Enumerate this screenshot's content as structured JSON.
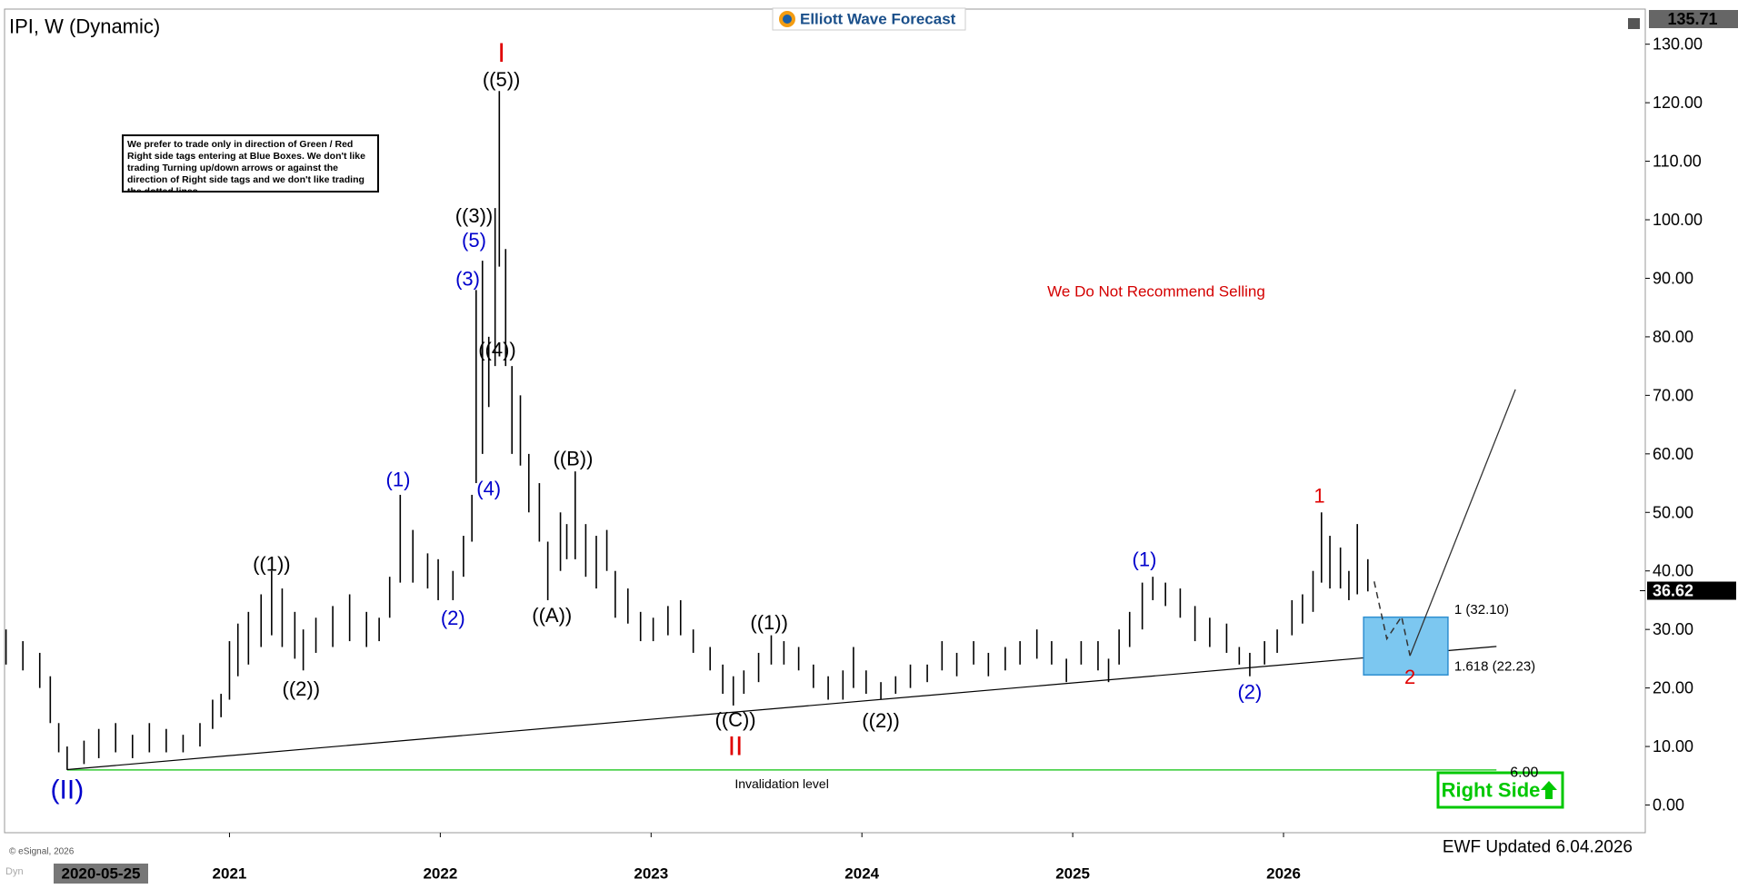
{
  "chart_data": {
    "type": "ohlc",
    "title": "IPI, W (Dynamic)",
    "logo": "Elliott Wave Forecast",
    "note": "We prefer to trade only in direction of Green / Red Right side tags entering at Blue Boxes. We don't like trading Turning up/down arrows or against the direction of Right side tags and we don't like trading the dotted lines.",
    "warning": "We Do Not Recommend Selling",
    "right_side": "Right Side",
    "updated": "EWF Updated 6.04.2026",
    "source": "© eSignal, 2026",
    "mode": "Dyn",
    "x_start_label": "2020-05-25",
    "axis_top_label": 135.71,
    "last_price": 36.62,
    "xlim": [
      2019.933,
      2027.716
    ],
    "ylim": [
      -4.73,
      136.0
    ],
    "xticks": [
      2021,
      2022,
      2023,
      2024,
      2025,
      2026
    ],
    "yticks": [
      {
        "value": 0,
        "label": "0.00"
      },
      {
        "value": 10,
        "label": "10.00"
      },
      {
        "value": 20,
        "label": "20.00"
      },
      {
        "value": 30,
        "label": "30.00"
      },
      {
        "value": 40,
        "label": "40.00"
      },
      {
        "value": 50,
        "label": "50.00"
      },
      {
        "value": 60,
        "label": "60.00"
      },
      {
        "value": 70,
        "label": "70.00"
      },
      {
        "value": 80,
        "label": "80.00"
      },
      {
        "value": 90,
        "label": "90.00"
      },
      {
        "value": 100,
        "label": "100.00"
      },
      {
        "value": 110,
        "label": "110.00"
      },
      {
        "value": 120,
        "label": "120.00"
      },
      {
        "value": 130,
        "label": "130.00"
      }
    ],
    "series": [
      {
        "color": "#000000",
        "x": [
          2019.94,
          2020.02,
          2020.1,
          2020.15,
          2020.19,
          2020.23,
          2020.31,
          2020.38,
          2020.46,
          2020.54,
          2020.62,
          2020.7,
          2020.78,
          2020.86,
          2020.92,
          2020.96,
          2021.0,
          2021.04,
          2021.09,
          2021.15,
          2021.2,
          2021.25,
          2021.31,
          2021.35,
          2021.41,
          2021.49,
          2021.57,
          2021.65,
          2021.71,
          2021.76,
          2021.81,
          2021.87,
          2021.94,
          2021.99,
          2022.06,
          2022.11,
          2022.15,
          2022.17,
          2022.2,
          2022.23,
          2022.26,
          2022.28,
          2022.31,
          2022.34,
          2022.38,
          2022.42,
          2022.47,
          2022.51,
          2022.57,
          2022.6,
          2022.64,
          2022.69,
          2022.74,
          2022.79,
          2022.83,
          2022.89,
          2022.95,
          2023.01,
          2023.08,
          2023.14,
          2023.2,
          2023.28,
          2023.34,
          2023.39,
          2023.44,
          2023.51,
          2023.57,
          2023.63,
          2023.7,
          2023.77,
          2023.84,
          2023.91,
          2023.96,
          2024.02,
          2024.09,
          2024.16,
          2024.23,
          2024.31,
          2024.38,
          2024.45,
          2024.53,
          2024.6,
          2024.68,
          2024.75,
          2024.83,
          2024.9,
          2024.97,
          2025.04,
          2025.12,
          2025.17,
          2025.22,
          2025.27,
          2025.33,
          2025.38,
          2025.44,
          2025.51,
          2025.58,
          2025.65,
          2025.73,
          2025.79,
          2025.84,
          2025.91,
          2025.97,
          2026.04,
          2026.09,
          2026.14,
          2026.18,
          2026.22,
          2026.27,
          2026.31,
          2026.35,
          2026.4
        ],
        "high": [
          30,
          28,
          26,
          22,
          14,
          10,
          11,
          13,
          14,
          12,
          14,
          13,
          12,
          14,
          18,
          19,
          28,
          31,
          33,
          36,
          40,
          37,
          33,
          30,
          32,
          34,
          36,
          33,
          32,
          39,
          53,
          47,
          43,
          42,
          40,
          46,
          53,
          88,
          93,
          80,
          102,
          122,
          95,
          75,
          70,
          60,
          55,
          45,
          50,
          48,
          57,
          48,
          46,
          47,
          40,
          37,
          33,
          32,
          34,
          35,
          30,
          27,
          24,
          22,
          23,
          26,
          29,
          28,
          27,
          24,
          22,
          23,
          27,
          23,
          21,
          22,
          24,
          24,
          28,
          26,
          28,
          26,
          27,
          28,
          30,
          28,
          25,
          28,
          28,
          25,
          30,
          33,
          38,
          39,
          38,
          37,
          34,
          32,
          31,
          27,
          26,
          28,
          30,
          35,
          36,
          40,
          50,
          46,
          44,
          40,
          48,
          42
        ],
        "low": [
          24,
          23,
          20,
          14,
          9,
          6,
          7,
          8,
          9,
          8,
          9,
          9,
          9,
          10,
          13,
          15,
          18,
          22,
          24,
          27,
          29,
          27,
          25,
          23,
          26,
          27,
          28,
          27,
          28,
          32,
          38,
          38,
          37,
          35,
          35,
          39,
          45,
          55,
          60,
          68,
          75,
          92,
          75,
          60,
          58,
          50,
          45,
          35,
          40,
          42,
          42,
          39,
          37,
          40,
          32,
          31,
          28,
          28,
          29,
          29,
          26,
          23,
          19,
          17,
          19,
          21,
          24,
          24,
          23,
          20,
          18,
          18,
          20,
          19,
          18,
          19,
          20,
          21,
          23,
          22,
          24,
          22,
          23,
          24,
          25,
          24,
          21,
          24,
          23,
          21,
          24,
          27,
          30,
          35,
          34,
          32,
          28,
          27,
          26,
          24,
          22,
          24,
          26,
          29,
          31,
          33,
          38,
          37,
          37,
          35,
          36,
          36.5
        ]
      }
    ],
    "trendline": {
      "x": [
        2020.23,
        2027.01
      ],
      "y": [
        6.05,
        27.1
      ]
    },
    "invalidation": {
      "value": 6,
      "label": "6.00",
      "text": "Invalidation level",
      "x": [
        2020.23,
        2027.01
      ]
    },
    "target_box": {
      "x": [
        2026.38,
        2026.78
      ],
      "high": 32.1,
      "low": 22.23,
      "high_label": "1 (32.10)",
      "low_label": "1.618 (22.23)"
    },
    "projection": {
      "dashed": {
        "x": [
          2026.43,
          2026.49,
          2026.56,
          2026.6
        ],
        "y": [
          38.2,
          28.4,
          32.2,
          25.5
        ]
      },
      "solid": {
        "x": [
          2026.6,
          2027.1
        ],
        "y": [
          25.5,
          71
        ]
      }
    },
    "wave_labels": [
      {
        "text": "I",
        "x": 2022.29,
        "y": 128.5,
        "color": "#e00000"
      },
      {
        "text": "((5))",
        "x": 2022.29,
        "y": 124,
        "color": "#000000"
      },
      {
        "text": "((3))",
        "x": 2022.16,
        "y": 100.7,
        "color": "#000000"
      },
      {
        "text": "(5)",
        "x": 2022.16,
        "y": 96.5,
        "color": "#0000cc"
      },
      {
        "text": "(3)",
        "x": 2022.13,
        "y": 89.9,
        "color": "#0000cc"
      },
      {
        "text": "((4))",
        "x": 2022.27,
        "y": 77.8,
        "color": "#000000"
      },
      {
        "text": "(4)",
        "x": 2022.23,
        "y": 54.1,
        "color": "#0000cc"
      },
      {
        "text": "(1)",
        "x": 2021.8,
        "y": 55.6,
        "color": "#0000cc"
      },
      {
        "text": "((1))",
        "x": 2021.2,
        "y": 41.2,
        "color": "#000000"
      },
      {
        "text": "(2)",
        "x": 2022.06,
        "y": 32.0,
        "color": "#0000cc"
      },
      {
        "text": "((2))",
        "x": 2021.34,
        "y": 19.9,
        "color": "#000000"
      },
      {
        "text": "((B))",
        "x": 2022.63,
        "y": 59.2,
        "color": "#000000"
      },
      {
        "text": "((A))",
        "x": 2022.53,
        "y": 32.4,
        "color": "#000000"
      },
      {
        "text": "((1))",
        "x": 2023.56,
        "y": 31.2,
        "color": "#000000"
      },
      {
        "text": "((C))",
        "x": 2023.4,
        "y": 14.6,
        "color": "#000000"
      },
      {
        "text": "II",
        "x": 2023.4,
        "y": 10.0,
        "color": "#e00000"
      },
      {
        "text": "((2))",
        "x": 2024.09,
        "y": 14.4,
        "color": "#000000"
      },
      {
        "text": "(1)",
        "x": 2025.34,
        "y": 42.0,
        "color": "#0000cc"
      },
      {
        "text": "(2)",
        "x": 2025.84,
        "y": 19.3,
        "color": "#0000cc"
      },
      {
        "text": "1",
        "x": 2026.17,
        "y": 52.8,
        "color": "#e00000"
      },
      {
        "text": "2",
        "x": 2026.6,
        "y": 21.9,
        "color": "#e00000"
      },
      {
        "text": "(II)",
        "x": 2020.23,
        "y": 2.6,
        "color": "#0000cc"
      }
    ]
  }
}
